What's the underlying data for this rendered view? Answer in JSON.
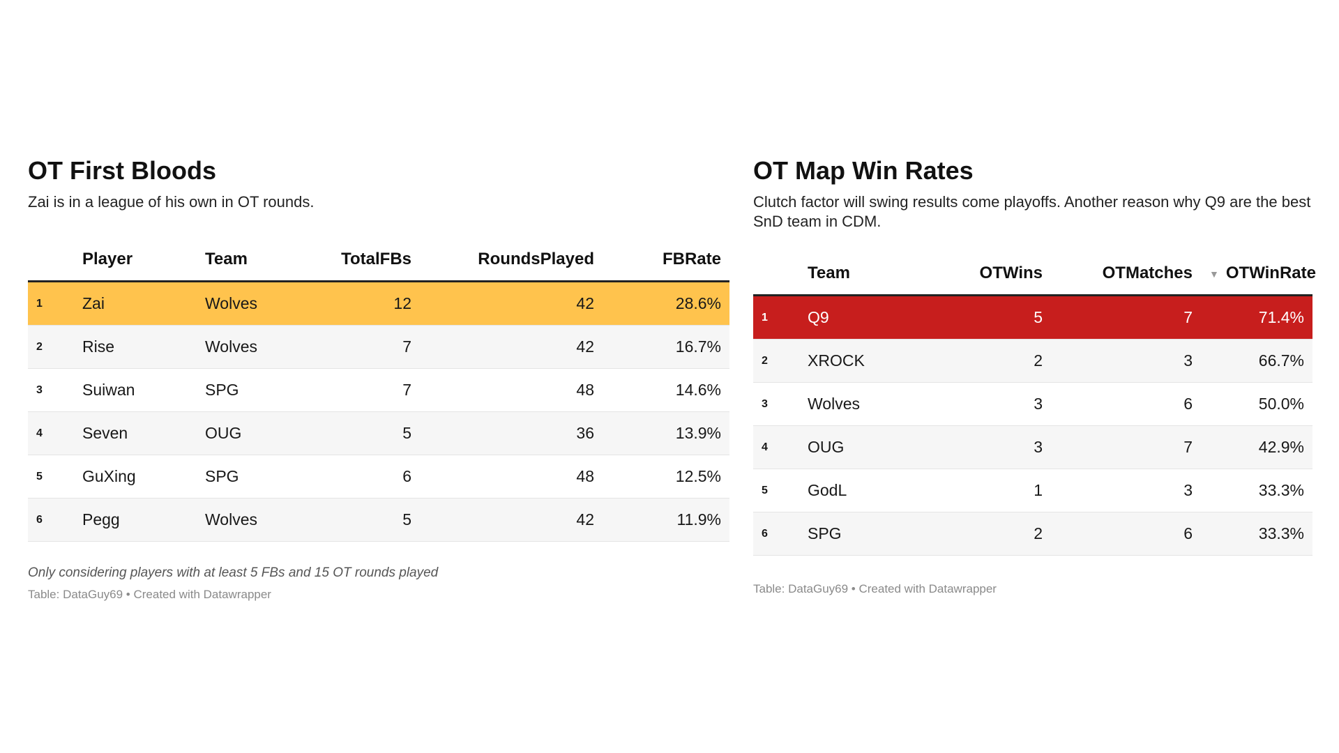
{
  "colors": {
    "highlight_left": "#ffc34d",
    "highlight_right": "#c71e1d",
    "highlight_right_text": "#ffffff"
  },
  "icons": {
    "sort_indicator": "sort-down-triangle-icon"
  },
  "chart_data": [
    {
      "type": "table",
      "title": "OT First Bloods",
      "subtitle": "Zai is in a league of his own in OT rounds.",
      "columns": [
        "Player",
        "Team",
        "TotalFBs",
        "RoundsPlayed",
        "FBRate"
      ],
      "rows": [
        {
          "rank": "1",
          "player": "Zai",
          "team": "Wolves",
          "total_fbs": "12",
          "rounds_played": "42",
          "fb_rate": "28.6%"
        },
        {
          "rank": "2",
          "player": "Rise",
          "team": "Wolves",
          "total_fbs": "7",
          "rounds_played": "42",
          "fb_rate": "16.7%"
        },
        {
          "rank": "3",
          "player": "Suiwan",
          "team": "SPG",
          "total_fbs": "7",
          "rounds_played": "48",
          "fb_rate": "14.6%"
        },
        {
          "rank": "4",
          "player": "Seven",
          "team": "OUG",
          "total_fbs": "5",
          "rounds_played": "36",
          "fb_rate": "13.9%"
        },
        {
          "rank": "5",
          "player": "GuXing",
          "team": "SPG",
          "total_fbs": "6",
          "rounds_played": "48",
          "fb_rate": "12.5%"
        },
        {
          "rank": "6",
          "player": "Pegg",
          "team": "Wolves",
          "total_fbs": "5",
          "rounds_played": "42",
          "fb_rate": "11.9%"
        }
      ],
      "notes": "Only considering players with at least 5 FBs and 15 OT rounds played",
      "source": "Table: DataGuy69 • Created with Datawrapper"
    },
    {
      "type": "table",
      "title": "OT Map Win Rates",
      "subtitle": "Clutch factor will swing results come playoffs. Another reason why Q9 are the best SnD team in CDM.",
      "columns": [
        "Team",
        "OTWins",
        "OTMatches",
        "OTWinRate"
      ],
      "sort_indicator": "▼",
      "rows": [
        {
          "rank": "1",
          "team": "Q9",
          "ot_wins": "5",
          "ot_matches": "7",
          "ot_win_rate": "71.4%"
        },
        {
          "rank": "2",
          "team": "XROCK",
          "ot_wins": "2",
          "ot_matches": "3",
          "ot_win_rate": "66.7%"
        },
        {
          "rank": "3",
          "team": "Wolves",
          "ot_wins": "3",
          "ot_matches": "6",
          "ot_win_rate": "50.0%"
        },
        {
          "rank": "4",
          "team": "OUG",
          "ot_wins": "3",
          "ot_matches": "7",
          "ot_win_rate": "42.9%"
        },
        {
          "rank": "5",
          "team": "GodL",
          "ot_wins": "1",
          "ot_matches": "3",
          "ot_win_rate": "33.3%"
        },
        {
          "rank": "6",
          "team": "SPG",
          "ot_wins": "2",
          "ot_matches": "6",
          "ot_win_rate": "33.3%"
        }
      ],
      "source": "Table: DataGuy69 • Created with Datawrapper"
    }
  ]
}
